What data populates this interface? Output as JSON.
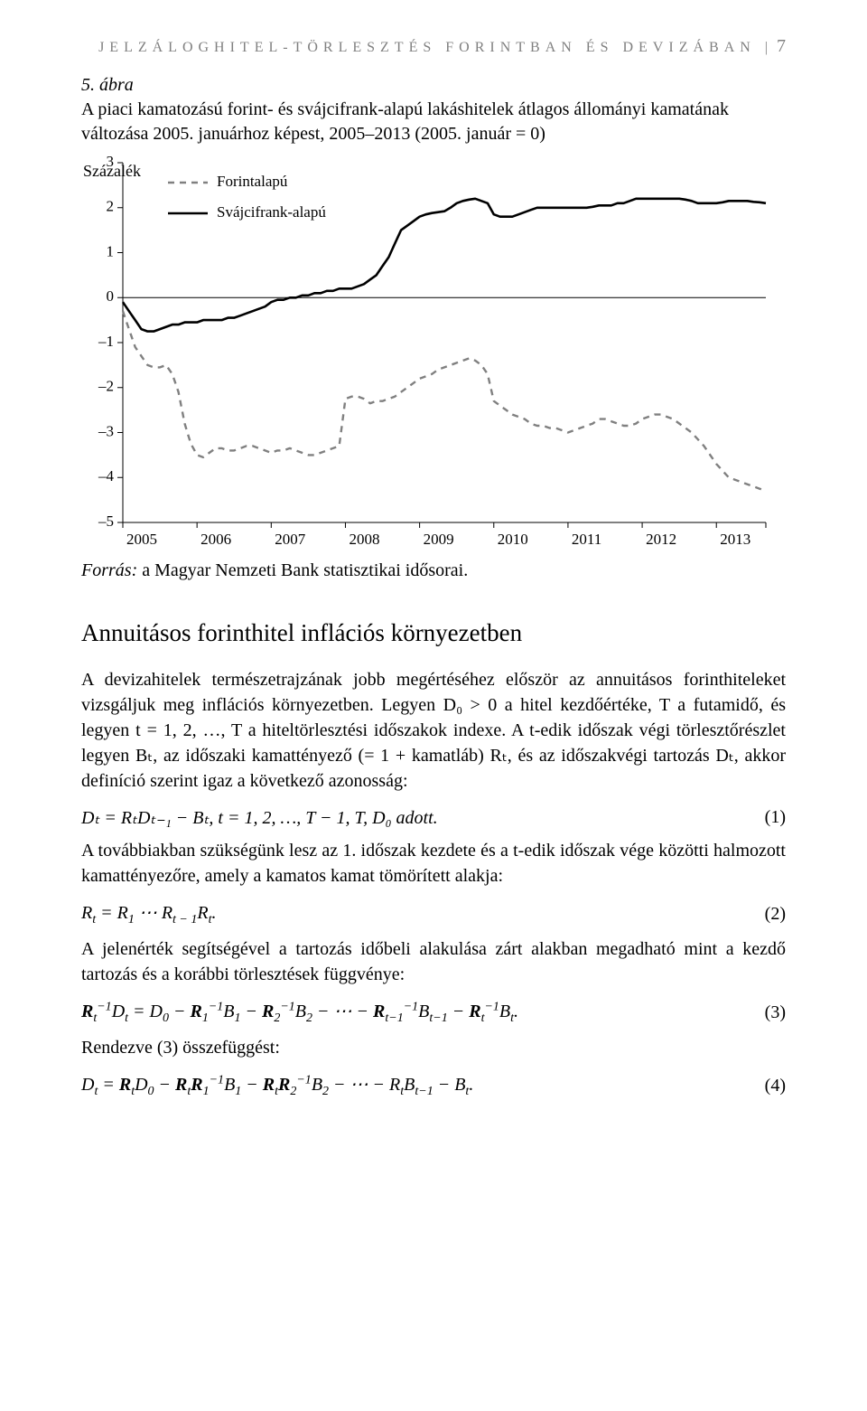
{
  "header": {
    "running_title": "Jelzáloghitel-törlesztés forintban és devizában",
    "page_number": "7"
  },
  "figure": {
    "label": "5. ábra",
    "caption": "A piaci kamatozású forint- és svájcifrank-alapú lakáshitelek átlagos állományi kamatának változása 2005. januárhoz képest, 2005–2013 (2005. január = 0)",
    "source_label": "Forrás:",
    "source_text": " a Magyar Nemzeti Bank statisztikai idősorai."
  },
  "chart": {
    "type": "line",
    "y_axis_title": "Százalék",
    "x_categories": [
      "2005",
      "2006",
      "2007",
      "2008",
      "2009",
      "2010",
      "2011",
      "2012",
      "2013"
    ],
    "y_ticks": [
      3,
      2,
      1,
      0,
      -1,
      -2,
      -3,
      -4,
      -5
    ],
    "ylim": [
      -5,
      3
    ],
    "xlim_ticks": 9,
    "legend": [
      {
        "label": "Forintalapú",
        "color": "#808080",
        "dash": "7,6",
        "width": 2.4
      },
      {
        "label": "Svájcifrank-alapú",
        "color": "#000000",
        "dash": "",
        "width": 2.6
      }
    ],
    "series_forint": [
      -0.3,
      -0.7,
      -1.1,
      -1.3,
      -1.5,
      -1.55,
      -1.55,
      -1.5,
      -1.7,
      -2.1,
      -2.8,
      -3.25,
      -3.5,
      -3.55,
      -3.45,
      -3.35,
      -3.35,
      -3.4,
      -3.4,
      -3.35,
      -3.3,
      -3.3,
      -3.35,
      -3.4,
      -3.45,
      -3.4,
      -3.4,
      -3.35,
      -3.4,
      -3.45,
      -3.5,
      -3.5,
      -3.45,
      -3.4,
      -3.35,
      -3.3,
      -2.25,
      -2.2,
      -2.2,
      -2.25,
      -2.35,
      -2.3,
      -2.3,
      -2.25,
      -2.2,
      -2.1,
      -2.0,
      -1.9,
      -1.8,
      -1.75,
      -1.7,
      -1.6,
      -1.55,
      -1.5,
      -1.45,
      -1.4,
      -1.35,
      -1.4,
      -1.5,
      -1.7,
      -2.3,
      -2.4,
      -2.5,
      -2.6,
      -2.65,
      -2.7,
      -2.8,
      -2.85,
      -2.85,
      -2.9,
      -2.9,
      -2.95,
      -3.0,
      -2.95,
      -2.9,
      -2.85,
      -2.8,
      -2.7,
      -2.7,
      -2.75,
      -2.8,
      -2.85,
      -2.85,
      -2.8,
      -2.7,
      -2.65,
      -2.6,
      -2.6,
      -2.65,
      -2.7,
      -2.8,
      -2.9,
      -3.0,
      -3.15,
      -3.3,
      -3.5,
      -3.7,
      -3.85,
      -4.0,
      -4.05,
      -4.1,
      -4.15,
      -4.2,
      -4.25,
      -4.3
    ],
    "series_chf": [
      -0.1,
      -0.3,
      -0.5,
      -0.7,
      -0.75,
      -0.75,
      -0.7,
      -0.65,
      -0.6,
      -0.6,
      -0.55,
      -0.55,
      -0.55,
      -0.5,
      -0.5,
      -0.5,
      -0.5,
      -0.45,
      -0.45,
      -0.4,
      -0.35,
      -0.3,
      -0.25,
      -0.2,
      -0.1,
      -0.05,
      -0.05,
      0.0,
      0.0,
      0.05,
      0.05,
      0.1,
      0.1,
      0.15,
      0.15,
      0.2,
      0.2,
      0.2,
      0.25,
      0.3,
      0.4,
      0.5,
      0.7,
      0.9,
      1.2,
      1.5,
      1.6,
      1.7,
      1.8,
      1.85,
      1.88,
      1.9,
      1.92,
      2.0,
      2.1,
      2.15,
      2.18,
      2.2,
      2.15,
      2.1,
      1.85,
      1.8,
      1.8,
      1.8,
      1.85,
      1.9,
      1.95,
      2.0,
      2.0,
      2.0,
      2.0,
      2.0,
      2.0,
      2.0,
      2.0,
      2.0,
      2.02,
      2.05,
      2.05,
      2.05,
      2.1,
      2.1,
      2.15,
      2.2,
      2.2,
      2.2,
      2.2,
      2.2,
      2.2,
      2.2,
      2.2,
      2.18,
      2.15,
      2.1,
      2.1,
      2.1,
      2.1,
      2.12,
      2.15,
      2.15,
      2.15,
      2.15,
      2.13,
      2.12,
      2.1
    ],
    "colors": {
      "axis": "#000000",
      "tick_text": "#000000",
      "background": "#ffffff"
    },
    "title_fontsize": 18,
    "tick_fontsize": 17
  },
  "section": {
    "title": "Annuitásos forinthitel inflációs környezetben"
  },
  "paragraphs": {
    "p1": "A devizahitelek természetrajzának jobb megértéséhez először az annuitásos forinthiteleket vizsgáljuk meg inflációs környezetben. Legyen D₀ > 0 a hitel kezdőértéke, T a futamidő, és legyen t = 1, 2, …, T a hiteltörlesztési időszakok indexe. A t-edik időszak végi törlesztőrészlet legyen Bₜ, az időszaki kamattényező (= 1 + kamatláb) Rₜ, és az időszakvégi tartozás Dₜ, akkor definíció szerint igaz a következő azonosság:",
    "p2": "A továbbiakban szükségünk lesz az 1. időszak kezdete és a t-edik időszak vége közötti halmozott kamattényezőre, amely a kamatos kamat tömörített alakja:",
    "p3": "A jelenérték segítségével a tartozás időbeli alakulása zárt alakban megadható mint a kezdő tartozás és a korábbi törlesztések függvénye:",
    "p4": "Rendezve (3) összefüggést:"
  },
  "equations": {
    "e1": "Dₜ = RₜDₜ₋₁ − Bₜ,   t = 1, 2, …, T − 1, T,   D₀ adott.",
    "e1_num": "(1)",
    "e2": "Rₜ = R₁ ⋯ Rₜ₋₁Rₜ.",
    "e2_num": "(2)",
    "e3": "𝐑ₜ⁻¹Dₜ = D₀ − 𝐑₁⁻¹B₁ − 𝐑₂⁻¹B₂ − ⋯ − 𝐑ₜ₋₁⁻¹Bₜ₋₁ − 𝐑ₜ⁻¹Bₜ.",
    "e3_num": "(3)",
    "e4": "Dₜ = 𝐑ₜD₀ − 𝐑ₜ𝐑₁⁻¹B₁ − 𝐑ₜ𝐑₂⁻¹B₂ − ⋯ − RₜBₜ₋₁ − Bₜ.",
    "e4_num": "(4)"
  }
}
